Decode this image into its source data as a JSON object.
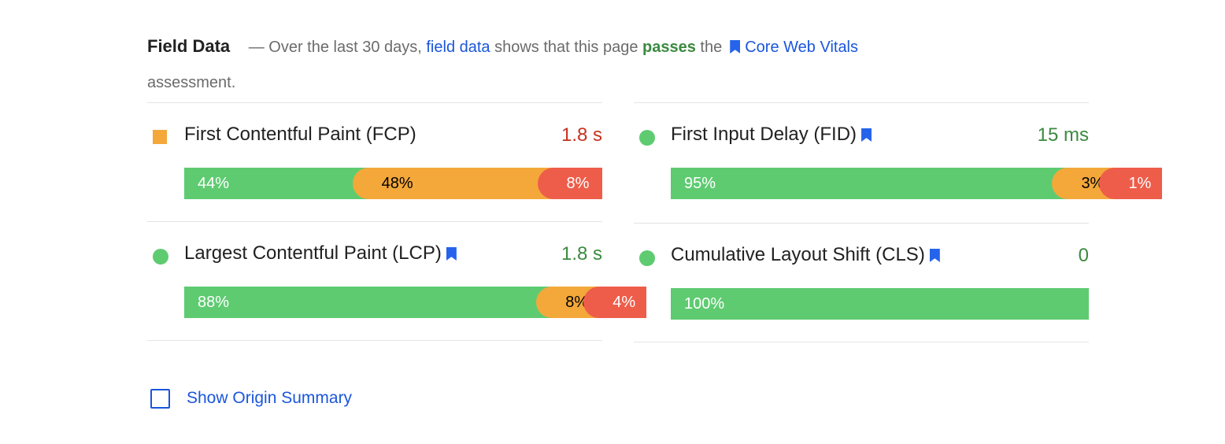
{
  "header": {
    "title": "Field Data",
    "dash": "— Over the last 30 days,",
    "link1": "field data",
    "mid": "shows that this page",
    "verdict": "passes",
    "the": "the",
    "link2": "Core Web Vitals",
    "tail": "assessment."
  },
  "metrics": [
    {
      "name": "First Contentful Paint (FCP)",
      "value": "1.8 s",
      "value_color": "#c5321e",
      "marker": "square",
      "marker_color": "#f4a83a",
      "bookmark": false,
      "segments": [
        {
          "value": 44,
          "label": "44%",
          "color": "#5ecb71",
          "text_color": "#ffffff"
        },
        {
          "value": 48,
          "label": "48%",
          "color": "#f4a83a",
          "text_color": "#000000"
        },
        {
          "value": 8,
          "label": "8%",
          "color": "#ee5d4a",
          "text_color": "#ffffff"
        }
      ]
    },
    {
      "name": "First Input Delay (FID)",
      "value": "15 ms",
      "value_color": "#3a8a3e",
      "marker": "circle",
      "marker_color": "#5ecb71",
      "bookmark": true,
      "segments": [
        {
          "value": 95,
          "label": "95%",
          "color": "#5ecb71",
          "text_color": "#ffffff"
        },
        {
          "value": 3,
          "label": "3%",
          "color": "#f4a83a",
          "text_color": "#000000"
        },
        {
          "value": 1,
          "label": "1%",
          "color": "#ee5d4a",
          "text_color": "#ffffff"
        }
      ]
    },
    {
      "name": "Largest Contentful Paint (LCP)",
      "value": "1.8 s",
      "value_color": "#3a8a3e",
      "marker": "circle",
      "marker_color": "#5ecb71",
      "bookmark": true,
      "segments": [
        {
          "value": 88,
          "label": "88%",
          "color": "#5ecb71",
          "text_color": "#ffffff"
        },
        {
          "value": 8,
          "label": "8%",
          "color": "#f4a83a",
          "text_color": "#000000"
        },
        {
          "value": 4,
          "label": "4%",
          "color": "#ee5d4a",
          "text_color": "#ffffff"
        }
      ]
    },
    {
      "name": "Cumulative Layout Shift (CLS)",
      "value": "0",
      "value_color": "#3a8a3e",
      "marker": "circle",
      "marker_color": "#5ecb71",
      "bookmark": true,
      "segments": [
        {
          "value": 100,
          "label": "100%",
          "color": "#5ecb71",
          "text_color": "#ffffff"
        }
      ]
    }
  ],
  "footer": {
    "checkbox_label": "Show Origin Summary"
  }
}
